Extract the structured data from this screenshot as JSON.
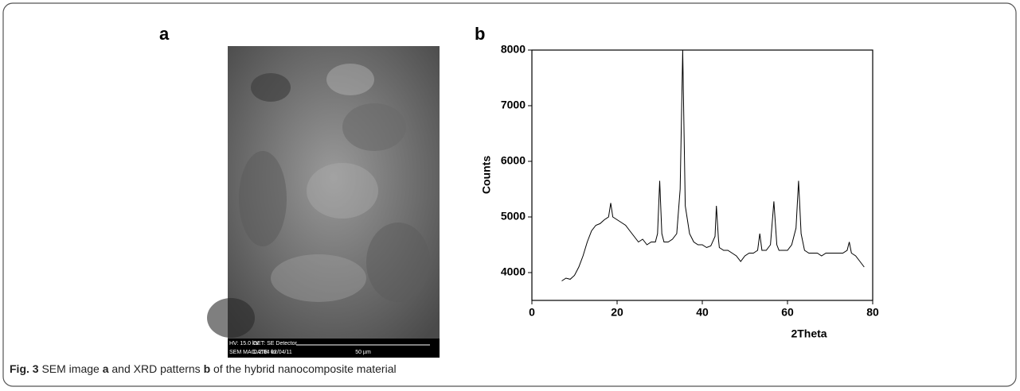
{
  "panel_labels": [
    "a",
    "b"
  ],
  "sem_info": {
    "hv": "HV: 15.0 kV",
    "det": "DET: SE Detector",
    "mag": "SEM MAG: 2.04 kx",
    "date": "DATE: 02/04/11",
    "scale": "50 µm"
  },
  "caption": [
    {
      "text": "Fig. 3",
      "bold": true
    },
    {
      "text": " SEM image ",
      "bold": false
    },
    {
      "text": "a",
      "bold": true
    },
    {
      "text": " and XRD patterns ",
      "bold": false
    },
    {
      "text": "b",
      "bold": true
    },
    {
      "text": " of the hybrid nanocomposite material",
      "bold": false
    }
  ],
  "chart_data": {
    "type": "line",
    "xlabel": "2Theta",
    "ylabel": "Counts",
    "color": "#000000",
    "xlim": [
      0,
      80
    ],
    "ylim": [
      3500,
      8000
    ],
    "xticks": [
      0,
      20,
      40,
      60,
      80
    ],
    "yticks": [
      4000,
      5000,
      6000,
      7000,
      8000
    ],
    "x": [
      7,
      8,
      9,
      10,
      11,
      12,
      13,
      14,
      15,
      16,
      17,
      18,
      18.5,
      19,
      20,
      21,
      22,
      23,
      24,
      25,
      26,
      27,
      28,
      29,
      29.5,
      30,
      30.5,
      31,
      32,
      33,
      34,
      34.8,
      35.4,
      36,
      37,
      38,
      39,
      40,
      41,
      42,
      43,
      43.3,
      43.8,
      44,
      45,
      46,
      47,
      48,
      49,
      50,
      51,
      52,
      53,
      53.5,
      54,
      55,
      56,
      56.8,
      57.5,
      58,
      59,
      60,
      61,
      62,
      62.6,
      63.2,
      64,
      65,
      66,
      67,
      68,
      69,
      70,
      71,
      72,
      73,
      74,
      74.5,
      75,
      76,
      77,
      78
    ],
    "values": [
      3850,
      3900,
      3880,
      3950,
      4100,
      4300,
      4550,
      4750,
      4850,
      4880,
      4950,
      5000,
      5250,
      5000,
      4950,
      4900,
      4850,
      4750,
      4650,
      4550,
      4600,
      4500,
      4550,
      4550,
      4700,
      5650,
      4700,
      4550,
      4550,
      4600,
      4700,
      5500,
      8000,
      5200,
      4700,
      4550,
      4500,
      4500,
      4450,
      4480,
      4650,
      5200,
      4600,
      4450,
      4400,
      4400,
      4350,
      4300,
      4200,
      4300,
      4350,
      4350,
      4400,
      4700,
      4400,
      4400,
      4500,
      5280,
      4500,
      4400,
      4400,
      4400,
      4500,
      4800,
      5650,
      4700,
      4400,
      4350,
      4350,
      4350,
      4300,
      4350,
      4350,
      4350,
      4350,
      4350,
      4400,
      4550,
      4350,
      4300,
      4200,
      4100
    ]
  }
}
